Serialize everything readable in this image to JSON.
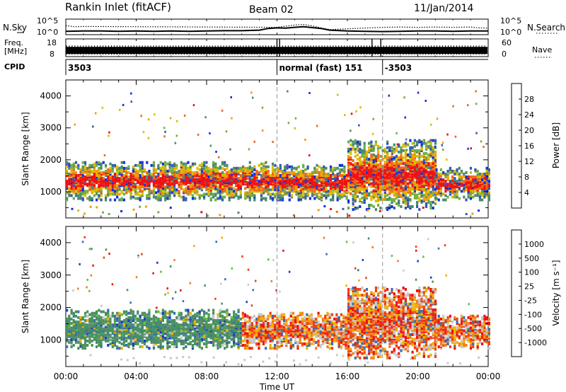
{
  "header": {
    "station": "Rankin Inlet (fitACF)",
    "beam": "Beam 02",
    "date": "11/Jan/2014"
  },
  "chart_data": [
    {
      "type": "line",
      "panel": "noise",
      "left_label_lines": [
        "N.Sky"
      ],
      "right_label": "N.Search",
      "left_ticks": [
        "10^5",
        "10^0"
      ],
      "right_ticks": [
        "10^5",
        "10^0"
      ],
      "series": [
        {
          "name": "N.Sky",
          "x": [
            0,
            1,
            2,
            3,
            4,
            5,
            6,
            7,
            8,
            9,
            10,
            11,
            11.5,
            12,
            12.5,
            13,
            13.5,
            14,
            14.5,
            15,
            16,
            17,
            18,
            19,
            20,
            21,
            22,
            23,
            24
          ],
          "y": [
            1.2,
            1.3,
            1.3,
            1.2,
            1.3,
            1.2,
            1.3,
            1.2,
            1.3,
            1.4,
            1.4,
            1.6,
            2.2,
            2.4,
            2.3,
            2.6,
            2.8,
            2.5,
            2.2,
            1.6,
            1.3,
            1.2,
            1.1,
            1.2,
            1.3,
            1.3,
            1.2,
            1.3,
            1.3
          ]
        },
        {
          "name": "N.Search",
          "x": [
            0,
            0.5,
            1,
            12,
            12.5,
            13,
            13.5,
            14,
            14.5,
            15,
            18,
            19,
            20,
            21,
            22,
            23,
            23.5,
            24
          ],
          "y": [
            3.2,
            2.8,
            2.9,
            2.6,
            3.0,
            3.4,
            3.6,
            3.1,
            2.4,
            1.8,
            2.6,
            2.7,
            2.6,
            2.7,
            2.6,
            2.7,
            2.4,
            2.3
          ]
        }
      ]
    },
    {
      "type": "line",
      "panel": "frequency",
      "left_label_lines": [
        "Freq.",
        "[MHz]"
      ],
      "right_label": "Nave",
      "left_ticks": [
        "18",
        "8"
      ],
      "right_ticks": [
        "60",
        "0"
      ],
      "frequency_mhz": 11.5,
      "nave_range": [
        0,
        60
      ]
    },
    {
      "type": "table",
      "panel": "cpid",
      "label": "CPID",
      "segments": [
        {
          "start_ut": 0.0,
          "end_ut": 12.0,
          "text": "3503"
        },
        {
          "start_ut": 12.0,
          "end_ut": 18.0,
          "text": "normal (fast) 151"
        },
        {
          "start_ut": 18.0,
          "end_ut": 24.0,
          "text": "-3503"
        }
      ]
    },
    {
      "type": "heatmap",
      "panel": "power",
      "ylabel": "Slant Range [km]",
      "xlim": [
        0,
        24
      ],
      "ylim": [
        180,
        4500
      ],
      "yticks": [
        1000,
        2000,
        3000,
        4000
      ],
      "colorbar": {
        "label": "Power [dB]",
        "ticks": [
          "4",
          "8",
          "12",
          "16",
          "20",
          "24",
          "28"
        ],
        "colors": [
          "#1030e0",
          "#3858b0",
          "#4a8a6a",
          "#70b040",
          "#d8c000",
          "#f0a000",
          "#f06818",
          "#f01010"
        ]
      },
      "echo_bands": [
        {
          "x_start": 0.0,
          "x_end": 12.0,
          "range_lo": 700,
          "range_hi": 1900,
          "dominant_db": 26
        },
        {
          "x_start": 12.0,
          "x_end": 16.0,
          "range_lo": 700,
          "range_hi": 1800,
          "dominant_db": 24
        },
        {
          "x_start": 16.0,
          "x_end": 21.0,
          "range_lo": 400,
          "range_hi": 2600,
          "dominant_db": 28
        },
        {
          "x_start": 21.0,
          "x_end": 24.0,
          "range_lo": 700,
          "range_hi": 1700,
          "dominant_db": 22
        }
      ]
    },
    {
      "type": "heatmap",
      "panel": "velocity",
      "ylabel": "Slant Range [km]",
      "xlim": [
        0,
        24
      ],
      "ylim": [
        180,
        4500
      ],
      "yticks": [
        1000,
        2000,
        3000,
        4000
      ],
      "colorbar": {
        "label": "Velocity [m s⁻¹]",
        "ticks": [
          "1000",
          "500",
          "100",
          "25",
          "-25",
          "-100",
          "-500",
          "-1000"
        ],
        "colors": [
          "#1a3ec8",
          "#3a70a8",
          "#4a9060",
          "#60c040",
          "#c8c8c8",
          "#f0b000",
          "#f08020",
          "#f04010",
          "#f01010"
        ]
      },
      "echo_bands": [
        {
          "x_start": 0.0,
          "x_end": 10.0,
          "range_lo": 700,
          "range_hi": 1900,
          "dominant_ms": 100
        },
        {
          "x_start": 10.0,
          "x_end": 16.0,
          "range_lo": 700,
          "range_hi": 1800,
          "dominant_ms": -100
        },
        {
          "x_start": 16.0,
          "x_end": 21.0,
          "range_lo": 400,
          "range_hi": 2600,
          "dominant_ms": -500
        },
        {
          "x_start": 21.0,
          "x_end": 24.0,
          "range_lo": 700,
          "range_hi": 1700,
          "dominant_ms": -100
        }
      ]
    }
  ],
  "xaxis": {
    "label": "Time UT",
    "ticks": [
      "00:00",
      "04:00",
      "08:00",
      "12:00",
      "16:00",
      "20:00",
      "00:00"
    ],
    "tick_hours": [
      0,
      4,
      8,
      12,
      16,
      20,
      24
    ]
  }
}
